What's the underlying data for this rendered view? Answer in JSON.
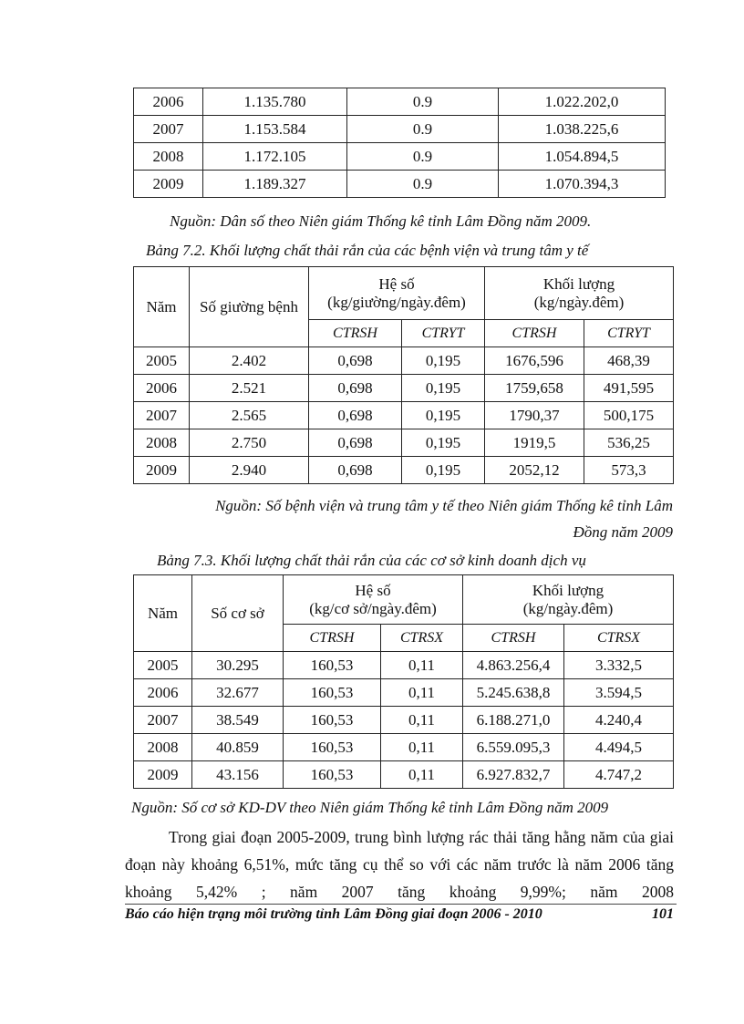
{
  "table1": {
    "rows": [
      [
        "2006",
        "1.135.780",
        "0.9",
        "1.022.202,0"
      ],
      [
        "2007",
        "1.153.584",
        "0.9",
        "1.038.225,6"
      ],
      [
        "2008",
        "1.172.105",
        "0.9",
        "1.054.894,5"
      ],
      [
        "2009",
        "1.189.327",
        "0.9",
        "1.070.394,3"
      ]
    ]
  },
  "source1": "Nguồn: Dân số  theo Niên giám Thống kê tỉnh Lâm Đồng năm 2009.",
  "caption2": "Bảng 7.2.  Khối lượng chất thải rắn của các bệnh viện và trung tâm y tế",
  "table2": {
    "h_year": "Năm",
    "h_count": "Số giường bệnh",
    "h_coef": "Hệ số",
    "h_coef_unit": "(kg/giường/ngày.đêm)",
    "h_mass": "Khối lượng",
    "h_mass_unit": "(kg/ngày.đêm)",
    "sub": [
      "CTRSH",
      "CTRYT",
      "CTRSH",
      "CTRYT"
    ],
    "rows": [
      [
        "2005",
        "2.402",
        "0,698",
        "0,195",
        "1676,596",
        "468,39"
      ],
      [
        "2006",
        "2.521",
        "0,698",
        "0,195",
        "1759,658",
        "491,595"
      ],
      [
        "2007",
        "2.565",
        "0,698",
        "0,195",
        "1790,37",
        "500,175"
      ],
      [
        "2008",
        "2.750",
        "0,698",
        "0,195",
        "1919,5",
        "536,25"
      ],
      [
        "2009",
        "2.940",
        "0,698",
        "0,195",
        "2052,12",
        "573,3"
      ]
    ]
  },
  "source2a": "Nguồn: Số bệnh viện và trung tâm y tế  theo Niên giám Thống kê tỉnh Lâm",
  "source2b": "Đồng năm 2009",
  "caption3": "Bảng 7.3. Khối lượng chất thải rắn của các cơ sở kinh doanh dịch vụ",
  "table3": {
    "h_year": "Năm",
    "h_count": "Số cơ sở",
    "h_coef": "Hệ số",
    "h_coef_unit": "(kg/cơ sở/ngày.đêm)",
    "h_mass": "Khối lượng",
    "h_mass_unit": "(kg/ngày.đêm)",
    "sub": [
      "CTRSH",
      "CTRSX",
      "CTRSH",
      "CTRSX"
    ],
    "rows": [
      [
        "2005",
        "30.295",
        "160,53",
        "0,11",
        "4.863.256,4",
        "3.332,5"
      ],
      [
        "2006",
        "32.677",
        "160,53",
        "0,11",
        "5.245.638,8",
        "3.594,5"
      ],
      [
        "2007",
        "38.549",
        "160,53",
        "0,11",
        "6.188.271,0",
        "4.240,4"
      ],
      [
        "2008",
        "40.859",
        "160,53",
        "0,11",
        "6.559.095,3",
        "4.494,5"
      ],
      [
        "2009",
        "43.156",
        "160,53",
        "0,11",
        "6.927.832,7",
        "4.747,2"
      ]
    ]
  },
  "source3": "Nguồn: Số cơ sở KD-DV theo Niên giám Thống kê tỉnh Lâm Đồng năm 2009",
  "paragraph": "Trong giai  đoạn 2005-2009, trung bình lượng rác thải tăng hằng năm của giai  đoạn này khoảng 6,51%, mức tăng cụ thể so với các năm trước là năm 2006 tăng khoảng 5,42% ; năm 2007 tăng khoảng 9,99%;  năm 2008",
  "footer": {
    "title": "Báo cáo hiện trạng môi trường tỉnh Lâm Đồng giai đoạn 2006 - 2010",
    "page": "101"
  }
}
